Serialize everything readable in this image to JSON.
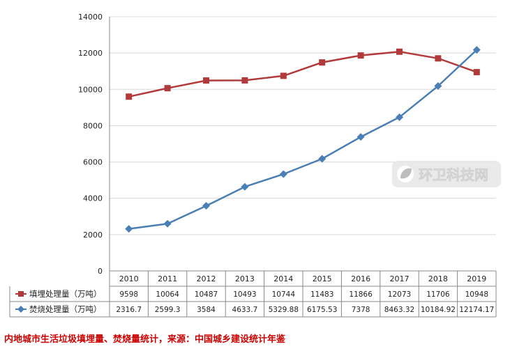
{
  "caption": "内地城市生活垃圾填埋量、焚烧量统计，来源：中国城乡建设统计年鉴",
  "watermark": {
    "text": "环卫科技网",
    "icon": "leaf-logo-icon"
  },
  "colors": {
    "landfill": "#b23a3a",
    "incineration": "#4a7fb5",
    "grid": "#d9d9d9",
    "axis": "#888888",
    "caption": "#cc0000"
  },
  "chart_data": {
    "type": "line",
    "title": "",
    "xlabel": "",
    "ylabel": "",
    "ylim": [
      0,
      14000
    ],
    "yticks": [
      "0",
      "2000",
      "4000",
      "6000",
      "8000",
      "10000",
      "12000",
      "14000"
    ],
    "grid": true,
    "legend": "data-table-left",
    "categories": [
      "2010",
      "2011",
      "2012",
      "2013",
      "2014",
      "2015",
      "2016",
      "2017",
      "2018",
      "2019"
    ],
    "series": [
      {
        "name": "填埋处理量（万吨）",
        "marker": "square",
        "color": "#b23a3a",
        "values": [
          9598,
          10064,
          10487,
          10493,
          10744,
          11483,
          11866,
          12073,
          11706,
          10948
        ],
        "labels": [
          "9598",
          "10064",
          "10487",
          "10493",
          "10744",
          "11483",
          "11866",
          "12073",
          "11706",
          "10948"
        ]
      },
      {
        "name": "焚烧处理量（万吨）",
        "marker": "diamond",
        "color": "#4a7fb5",
        "values": [
          2316.7,
          2599.3,
          3584,
          4633.7,
          5329.88,
          6175.53,
          7378,
          8463.32,
          10184.92,
          12174.17
        ],
        "labels": [
          "2316.7",
          "2599.3",
          "3584",
          "4633.7",
          "5329.88",
          "6175.53",
          "7378",
          "8463.32",
          "10184.92",
          "12174.17"
        ]
      }
    ]
  }
}
